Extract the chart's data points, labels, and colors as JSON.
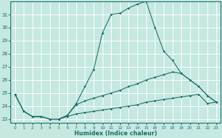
{
  "xlabel": "Humidex (Indice chaleur)",
  "xlim": [
    -0.5,
    23.5
  ],
  "ylim": [
    22.7,
    32.0
  ],
  "yticks": [
    23,
    24,
    25,
    26,
    27,
    28,
    29,
    30,
    31
  ],
  "xticks": [
    0,
    1,
    2,
    3,
    4,
    5,
    6,
    7,
    8,
    9,
    10,
    11,
    12,
    13,
    14,
    15,
    16,
    17,
    18,
    19,
    20,
    21,
    22,
    23
  ],
  "bg_color": "#c5e8e0",
  "line_color": "#1a6e68",
  "grid_color": "#ffffff",
  "lines": [
    {
      "x": [
        0,
        1,
        2,
        3,
        4,
        5,
        6,
        7,
        8,
        9,
        10,
        11,
        12,
        13,
        14,
        15,
        16,
        17,
        18,
        19,
        20,
        21,
        22,
        23
      ],
      "y": [
        24.9,
        23.6,
        23.2,
        23.2,
        23.0,
        23.0,
        23.2,
        23.4,
        23.5,
        23.6,
        23.7,
        23.8,
        23.9,
        24.0,
        24.1,
        24.3,
        24.4,
        24.5,
        24.6,
        24.7,
        24.8,
        24.9,
        24.2,
        24.3
      ]
    },
    {
      "x": [
        0,
        1,
        2,
        3,
        4,
        5,
        6,
        7,
        8,
        9,
        10,
        11,
        12,
        13,
        14,
        15,
        16,
        17,
        18,
        19,
        20,
        21,
        22,
        23
      ],
      "y": [
        24.9,
        23.6,
        23.2,
        23.2,
        23.0,
        23.0,
        23.3,
        24.1,
        24.4,
        24.6,
        24.8,
        25.0,
        25.2,
        25.5,
        25.7,
        26.0,
        26.2,
        26.4,
        26.6,
        26.5,
        26.0,
        25.5,
        24.8,
        24.3
      ]
    },
    {
      "x": [
        0,
        1,
        2,
        3,
        4,
        5,
        6,
        7,
        8,
        9,
        10,
        11,
        12,
        13,
        14,
        15,
        16,
        17,
        18,
        19,
        20,
        21,
        22,
        23
      ],
      "y": [
        24.9,
        23.6,
        23.2,
        23.2,
        23.0,
        23.0,
        23.3,
        24.2,
        25.5,
        26.8,
        29.6,
        31.0,
        31.1,
        31.5,
        31.8,
        32.0,
        30.0,
        28.2,
        27.5,
        26.5,
        26.0,
        25.5,
        24.8,
        24.3
      ]
    }
  ]
}
